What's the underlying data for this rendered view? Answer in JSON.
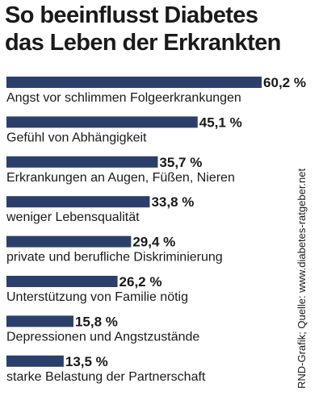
{
  "title_lines": [
    "So beeinflusst Diabetes",
    "das Leben der Erkrankten"
  ],
  "source": "RND-Grafik; Quelle: www.diabetes-ratgeber.net",
  "bar_color": "#2b3f6b",
  "chart_data": {
    "type": "bar",
    "orientation": "horizontal",
    "title": "So beeinflusst Diabetes das Leben der Erkrankten",
    "unit": "%",
    "categories": [
      "Angst vor schlimmen Folgeerkrankungen",
      "Gefühl von Abhängigkeit",
      "Erkrankungen an Augen, Füßen, Nieren",
      "weniger Lebensqualität",
      "private und berufliche Diskriminierung",
      "Unterstützung von Familie nötig",
      "Depressionen und Angstzustände",
      "starke Belastung der Partnerschaft"
    ],
    "values": [
      60.2,
      45.1,
      35.7,
      33.8,
      29.4,
      26.2,
      15.8,
      13.5
    ],
    "value_labels": [
      "60,2 %",
      "45,1 %",
      "35,7 %",
      "33,8 %",
      "29,4 %",
      "26,2 %",
      "15,8 %",
      "13,5 %"
    ],
    "grid": false,
    "legend": "none"
  }
}
